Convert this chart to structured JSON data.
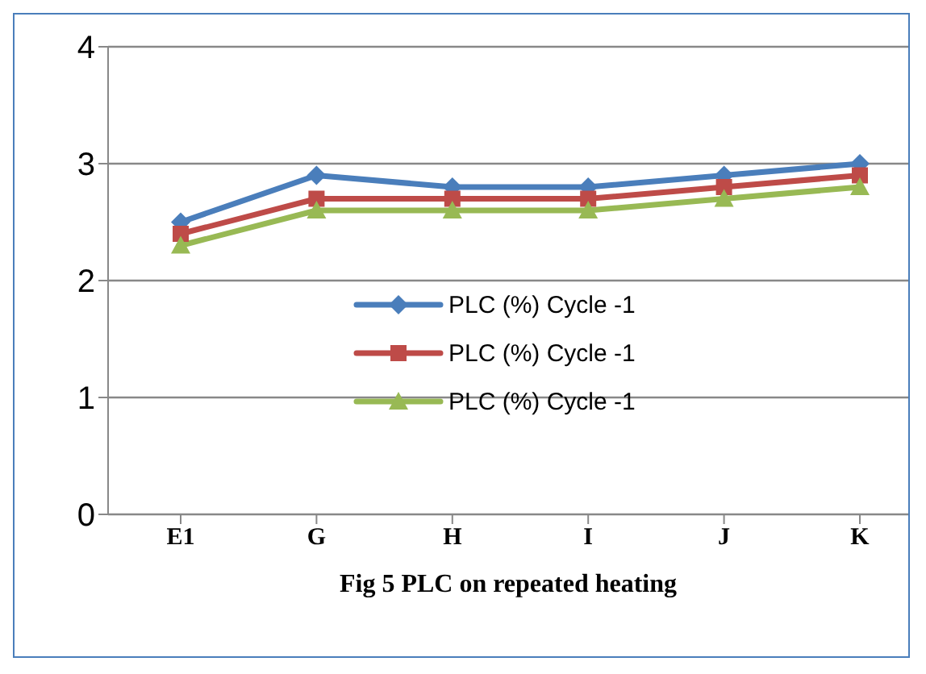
{
  "chart_data": {
    "type": "line",
    "title": "Fig 5 PLC on repeated heating",
    "categories": [
      "E1",
      "G",
      "H",
      "I",
      "J",
      "K"
    ],
    "series": [
      {
        "name": "PLC (%) Cycle -1",
        "color": "#4a7ebb",
        "marker": "diamond",
        "values": [
          2.5,
          2.9,
          2.8,
          2.8,
          2.9,
          3.0
        ]
      },
      {
        "name": "PLC (%) Cycle -1",
        "color": "#be4b48",
        "marker": "square",
        "values": [
          2.4,
          2.7,
          2.7,
          2.7,
          2.8,
          2.9
        ]
      },
      {
        "name": "PLC (%) Cycle -1",
        "color": "#98b954",
        "marker": "triangle",
        "values": [
          2.3,
          2.6,
          2.6,
          2.6,
          2.7,
          2.8
        ]
      }
    ],
    "ylim": [
      0,
      4
    ],
    "yticks": [
      0,
      1,
      2,
      3,
      4
    ],
    "grid": "y",
    "legend": "center"
  }
}
